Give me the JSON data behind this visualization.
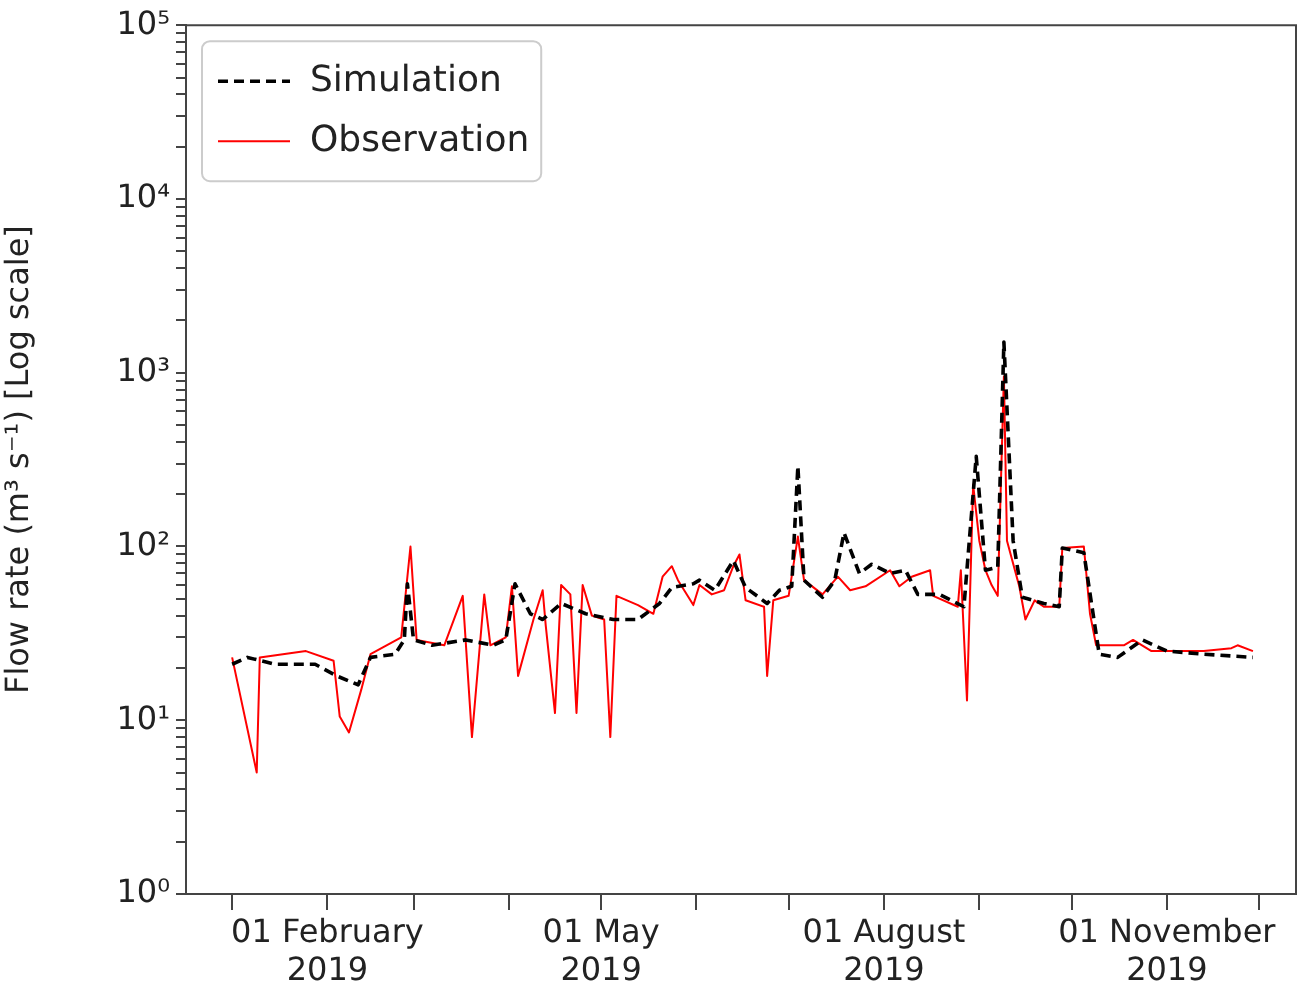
{
  "chart_data": {
    "type": "line",
    "ylabel": "Flow rate (m³ s⁻¹) [Log scale]",
    "log": "y",
    "legend": "top left",
    "grid": false,
    "xlim": [
      "2018-12-17",
      "2019-12-13"
    ],
    "xticks": [
      {
        "value": "2019-01-01",
        "label": null
      },
      {
        "value": "2019-02-01",
        "label": "01 February 2019"
      },
      {
        "value": "2019-03-01",
        "label": null
      },
      {
        "value": "2019-04-01",
        "label": null
      },
      {
        "value": "2019-05-01",
        "label": "01 May 2019"
      },
      {
        "value": "2019-06-01",
        "label": null
      },
      {
        "value": "2019-07-01",
        "label": null
      },
      {
        "value": "2019-08-01",
        "label": "01 August 2019"
      },
      {
        "value": "2019-09-01",
        "label": null
      },
      {
        "value": "2019-10-01",
        "label": null
      },
      {
        "value": "2019-11-01",
        "label": "01 November 2019"
      },
      {
        "value": "2019-12-01",
        "label": null
      }
    ],
    "ylim": [
      1,
      100000
    ],
    "yticks": [
      {
        "value": 1,
        "label": "10⁰"
      },
      {
        "value": 10,
        "label": "10¹"
      },
      {
        "value": 100,
        "label": "10²"
      },
      {
        "value": 1000,
        "label": "10³"
      },
      {
        "value": 10000,
        "label": "10⁴"
      },
      {
        "value": 100000,
        "label": "10⁵"
      },
      {
        "value": 2,
        "label": null
      },
      {
        "value": 3,
        "label": null
      },
      {
        "value": 4,
        "label": null
      },
      {
        "value": 5,
        "label": null
      },
      {
        "value": 6,
        "label": null
      },
      {
        "value": 7,
        "label": null
      },
      {
        "value": 8,
        "label": null
      },
      {
        "value": 9,
        "label": null
      },
      {
        "value": 20,
        "label": null
      },
      {
        "value": 30,
        "label": null
      },
      {
        "value": 40,
        "label": null
      },
      {
        "value": 50,
        "label": null
      },
      {
        "value": 60,
        "label": null
      },
      {
        "value": 70,
        "label": null
      },
      {
        "value": 80,
        "label": null
      },
      {
        "value": 90,
        "label": null
      },
      {
        "value": 200,
        "label": null
      },
      {
        "value": 300,
        "label": null
      },
      {
        "value": 400,
        "label": null
      },
      {
        "value": 500,
        "label": null
      },
      {
        "value": 600,
        "label": null
      },
      {
        "value": 700,
        "label": null
      },
      {
        "value": 800,
        "label": null
      },
      {
        "value": 900,
        "label": null
      },
      {
        "value": 2000,
        "label": null
      },
      {
        "value": 3000,
        "label": null
      },
      {
        "value": 4000,
        "label": null
      },
      {
        "value": 5000,
        "label": null
      },
      {
        "value": 6000,
        "label": null
      },
      {
        "value": 7000,
        "label": null
      },
      {
        "value": 8000,
        "label": null
      },
      {
        "value": 9000,
        "label": null
      },
      {
        "value": 20000,
        "label": null
      },
      {
        "value": 30000,
        "label": null
      },
      {
        "value": 40000,
        "label": null
      },
      {
        "value": 50000,
        "label": null
      },
      {
        "value": 60000,
        "label": null
      },
      {
        "value": 70000,
        "label": null
      },
      {
        "value": 80000,
        "label": null
      },
      {
        "value": 90000,
        "label": null
      }
    ],
    "series": [
      {
        "name": "Simulation",
        "color": "#000000",
        "line_style": "dashed",
        "x": [
          "2019-01-01",
          "2019-01-06",
          "2019-01-15",
          "2019-01-28",
          "2019-02-04",
          "2019-02-11",
          "2019-02-15",
          "2019-02-23",
          "2019-02-26",
          "2019-02-27",
          "2019-03-01",
          "2019-03-07",
          "2019-03-18",
          "2019-03-27",
          "2019-03-31",
          "2019-04-03",
          "2019-04-08",
          "2019-04-12",
          "2019-04-18",
          "2019-04-26",
          "2019-05-05",
          "2019-05-13",
          "2019-05-20",
          "2019-05-24",
          "2019-05-31",
          "2019-06-02",
          "2019-06-07",
          "2019-06-13",
          "2019-06-17",
          "2019-06-24",
          "2019-06-28",
          "2019-07-02",
          "2019-07-04",
          "2019-07-06",
          "2019-07-12",
          "2019-07-16",
          "2019-07-19",
          "2019-07-24",
          "2019-07-28",
          "2019-08-03",
          "2019-08-08",
          "2019-08-12",
          "2019-08-19",
          "2019-08-27",
          "2019-08-31",
          "2019-09-03",
          "2019-09-07",
          "2019-09-09",
          "2019-09-12",
          "2019-09-15",
          "2019-09-22",
          "2019-09-27",
          "2019-09-28",
          "2019-10-05",
          "2019-10-08",
          "2019-10-10",
          "2019-10-16",
          "2019-10-24",
          "2019-11-01",
          "2019-11-13",
          "2019-11-29"
        ],
        "values": [
          21,
          23,
          21,
          21,
          18,
          16,
          23,
          24,
          29,
          61,
          29,
          27,
          29,
          27,
          29,
          61,
          41,
          38,
          47,
          41,
          38,
          38,
          47,
          58,
          61,
          64,
          56,
          83,
          58,
          47,
          56,
          59,
          290,
          64,
          51,
          64,
          120,
          70,
          79,
          70,
          73,
          53,
          53,
          45,
          330,
          73,
          76,
          1500,
          108,
          51,
          47,
          45,
          98,
          92,
          41,
          24,
          23,
          29,
          25,
          24,
          23
        ]
      },
      {
        "name": "Observation",
        "color": "#ff0000",
        "line_style": "solid",
        "x": [
          "2019-01-01",
          "2019-01-09",
          "2019-01-10",
          "2019-01-25",
          "2019-02-03",
          "2019-02-05",
          "2019-02-08",
          "2019-02-12",
          "2019-02-15",
          "2019-02-25",
          "2019-02-28",
          "2019-03-02",
          "2019-03-11",
          "2019-03-17",
          "2019-03-20",
          "2019-03-24",
          "2019-03-26",
          "2019-03-31",
          "2019-04-02",
          "2019-04-04",
          "2019-04-09",
          "2019-04-12",
          "2019-04-13",
          "2019-04-16",
          "2019-04-18",
          "2019-04-21",
          "2019-04-23",
          "2019-04-25",
          "2019-04-28",
          "2019-05-02",
          "2019-05-04",
          "2019-05-06",
          "2019-05-13",
          "2019-05-18",
          "2019-05-21",
          "2019-05-24",
          "2019-05-26",
          "2019-05-31",
          "2019-06-02",
          "2019-06-06",
          "2019-06-10",
          "2019-06-13",
          "2019-06-15",
          "2019-06-17",
          "2019-06-23",
          "2019-06-24",
          "2019-06-26",
          "2019-07-01",
          "2019-07-04",
          "2019-07-06",
          "2019-07-12",
          "2019-07-17",
          "2019-07-21",
          "2019-07-26",
          "2019-08-03",
          "2019-08-06",
          "2019-08-10",
          "2019-08-16",
          "2019-08-17",
          "2019-08-25",
          "2019-08-26",
          "2019-08-28",
          "2019-08-30",
          "2019-09-01",
          "2019-09-03",
          "2019-09-05",
          "2019-09-07",
          "2019-09-09",
          "2019-09-10",
          "2019-09-14",
          "2019-09-16",
          "2019-09-19",
          "2019-09-22",
          "2019-09-27",
          "2019-09-28",
          "2019-10-05",
          "2019-10-07",
          "2019-10-09",
          "2019-10-18",
          "2019-10-21",
          "2019-10-27",
          "2019-11-05",
          "2019-11-13",
          "2019-11-22",
          "2019-11-24",
          "2019-11-29"
        ],
        "values": [
          23,
          5,
          23,
          25,
          22,
          10.5,
          8.5,
          15,
          24,
          30,
          100,
          29,
          27,
          52,
          8,
          53,
          27,
          30,
          59,
          18,
          38,
          56,
          35,
          11,
          60,
          53,
          11,
          60,
          40,
          38,
          8,
          52,
          46,
          41,
          67,
          77,
          64,
          46,
          60,
          53,
          56,
          77,
          90,
          49,
          45,
          18,
          49,
          52,
          114,
          64,
          53,
          67,
          56,
          59,
          73,
          59,
          67,
          73,
          52,
          45,
          73,
          13,
          227,
          108,
          73,
          60,
          52,
          950,
          108,
          59,
          38,
          49,
          45,
          45,
          98,
          100,
          41,
          27,
          27,
          29,
          25,
          25,
          25,
          26,
          27,
          25
        ]
      }
    ]
  }
}
